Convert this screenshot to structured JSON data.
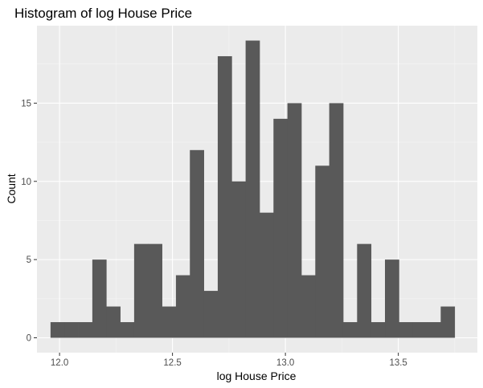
{
  "chart_data": {
    "type": "bar",
    "title": "Histogram of log House Price",
    "xlabel": "log House Price",
    "ylabel": "Count",
    "xlim": [
      11.9,
      13.85
    ],
    "ylim": [
      -0.95,
      19.95
    ],
    "xticks": [
      {
        "value": 12.0,
        "label": "12.0"
      },
      {
        "value": 12.5,
        "label": "12.5"
      },
      {
        "value": 13.0,
        "label": "13.0"
      },
      {
        "value": 13.5,
        "label": "13.5"
      }
    ],
    "yticks": [
      {
        "value": 0,
        "label": "0"
      },
      {
        "value": 5,
        "label": "5"
      },
      {
        "value": 10,
        "label": "10"
      },
      {
        "value": 15,
        "label": "15"
      }
    ],
    "bin_start": 11.96,
    "bin_width": 0.0617,
    "counts": [
      1,
      1,
      1,
      5,
      2,
      1,
      6,
      6,
      2,
      4,
      12,
      3,
      18,
      10,
      19,
      8,
      14,
      15,
      4,
      11,
      15,
      1,
      6,
      1,
      5,
      1,
      1,
      1,
      2
    ],
    "grid": true,
    "legend": "none",
    "colors": {
      "panel_background": "#ebebeb",
      "grid_major": "#ffffff",
      "grid_minor": "#f5f5f5",
      "bar_fill": "#595959",
      "tick_label": "#4d4d4d",
      "tick_mark": "#333333"
    }
  }
}
